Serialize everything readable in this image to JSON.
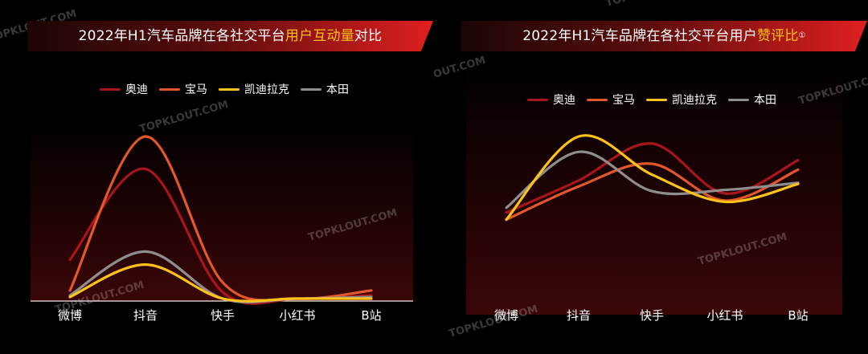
{
  "watermark": "TOPKLOUT.COM",
  "charts": [
    {
      "id": "left",
      "title_parts": [
        {
          "text": "2022年H1汽车品牌在各社交平台",
          "hl": false
        },
        {
          "text": "用户互动量",
          "hl": true
        },
        {
          "text": "对比",
          "hl": false
        }
      ],
      "chart_data": {
        "type": "line",
        "title": "2022年H1汽车品牌在各社交平台用户互动量对比",
        "categories": [
          "微博",
          "抖音",
          "快手",
          "小红书",
          "B站"
        ],
        "ylim": [
          0,
          100
        ],
        "grid": false,
        "legend_position": "top",
        "series": [
          {
            "name": "奥迪",
            "color": "#a8161c",
            "values": [
              24,
              80,
              4,
              0,
              2
            ]
          },
          {
            "name": "宝马",
            "color": "#e2572c",
            "values": [
              5,
              100,
              10,
              0,
              5
            ]
          },
          {
            "name": "凯迪拉克",
            "color": "#ffc21a",
            "values": [
              1,
              21,
              0,
              0,
              0
            ]
          },
          {
            "name": "本田",
            "color": "#8e8e8e",
            "values": [
              2,
              29,
              0,
              0,
              1
            ]
          }
        ]
      }
    },
    {
      "id": "right",
      "title_parts": [
        {
          "text": "2022年H1汽车品牌在各社交平台用户",
          "hl": false
        },
        {
          "text": "赞评比",
          "hl": true
        },
        {
          "text": "①",
          "hl": false,
          "sup": true
        }
      ],
      "chart_data": {
        "type": "line",
        "title": "2022年H1汽车品牌在各社交平台用户赞评比",
        "categories": [
          "微博",
          "抖音",
          "快手",
          "小红书",
          "B站"
        ],
        "ylim": [
          0,
          100
        ],
        "grid": false,
        "legend_position": "top",
        "series": [
          {
            "name": "奥迪",
            "color": "#a8161c",
            "values": [
              36,
              63,
              94,
              52,
              80
            ]
          },
          {
            "name": "宝马",
            "color": "#e2572c",
            "values": [
              30,
              58,
              77,
              46,
              72
            ]
          },
          {
            "name": "凯迪拉克",
            "color": "#ffc21a",
            "values": [
              30,
              100,
              68,
              45,
              60
            ]
          },
          {
            "name": "本田",
            "color": "#8e8e8e",
            "values": [
              40,
              87,
              54,
              55,
              61
            ]
          }
        ]
      }
    }
  ]
}
